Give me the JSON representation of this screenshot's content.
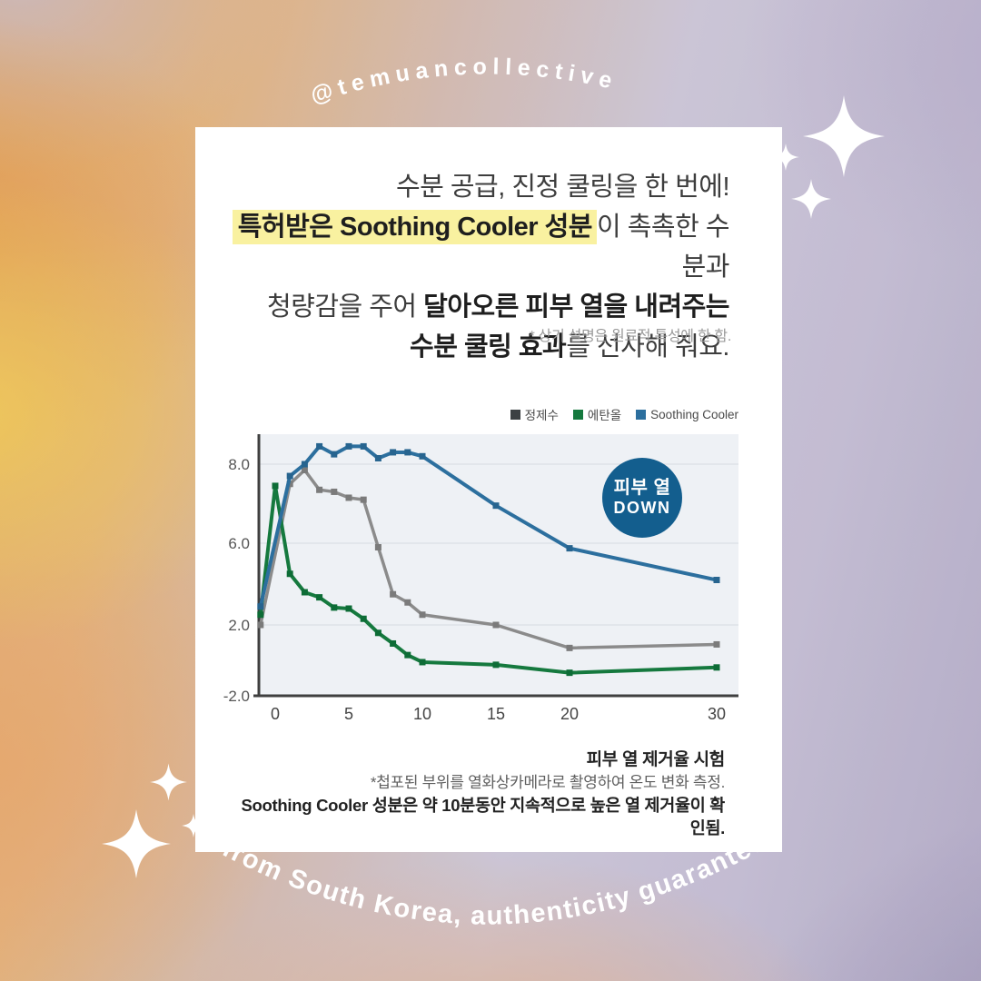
{
  "branding": {
    "handle_top": "@temuancollective",
    "tagline_bottom": "from South Korea, authenticity guaranteed"
  },
  "card": {
    "headline": {
      "line1": "수분 공급, 진정 쿨링을 한 번에!",
      "line2_highlight": "특허받은 Soothing Cooler 성분",
      "line2_rest": "이 촉촉한 수분과",
      "line3_prefix": "청량감을 주어 ",
      "line3_bold": "달아오른 피부 열을 내려주는",
      "line4_bold": "수분 쿨링 효과",
      "line4_rest": "를 선사해 줘요.",
      "highlight_color": "#f9f1a0"
    },
    "disclaimer": "* 상기 설명은 원료적 특성에 한 함.",
    "badge": {
      "line1": "피부 열",
      "line2": "DOWN",
      "color": "#135e8e"
    },
    "footer": {
      "title": "피부 열 제거율 시험",
      "note": "*첩포된 부위를 열화상카메라로 촬영하여 온도 변화 측정.",
      "emphasis": "Soothing Cooler 성분은 약 10분동안 지속적으로 높은 열 제거율이 확인됨."
    }
  },
  "chart_data": {
    "type": "line",
    "title": "",
    "xlabel": "",
    "ylabel": "",
    "x_ticks": [
      0,
      5,
      10,
      15,
      20,
      30
    ],
    "y_ticks": [
      8.0,
      6.0,
      2.0,
      -2.0
    ],
    "ylim": [
      -2.0,
      9.0
    ],
    "grid": true,
    "legend_position": "top-right",
    "plot_bg": "#eef1f5",
    "series": [
      {
        "name": "정제수",
        "swatch_color": "#3c4043",
        "line_color": "#8b8b8b",
        "marker_color": "#7b7b7b",
        "x": [
          -1,
          1,
          2,
          3,
          4,
          5,
          6,
          7,
          8,
          9,
          10,
          15,
          20,
          30
        ],
        "values": [
          2.0,
          7.5,
          7.85,
          7.35,
          7.3,
          7.15,
          7.1,
          5.8,
          3.5,
          3.1,
          2.5,
          2.0,
          0.7,
          0.9
        ]
      },
      {
        "name": "에탄올",
        "swatch_color": "#15793e",
        "line_color": "#15793e",
        "marker_color": "#0d6c36",
        "x": [
          -1,
          0,
          1,
          2,
          3,
          4,
          5,
          6,
          7,
          8,
          9,
          10,
          15,
          20,
          30
        ],
        "values": [
          2.5,
          7.45,
          4.5,
          3.6,
          3.35,
          2.85,
          2.8,
          2.3,
          1.55,
          0.95,
          0.3,
          -0.1,
          -0.25,
          -0.7,
          -0.4
        ]
      },
      {
        "name": "Soothing Cooler",
        "swatch_color": "#2c6f9e",
        "line_color": "#2c6f9e",
        "marker_color": "#27648f",
        "x": [
          -1,
          1,
          2,
          3,
          4,
          5,
          6,
          7,
          8,
          9,
          10,
          15,
          20,
          30
        ],
        "values": [
          2.9,
          7.7,
          8.0,
          8.45,
          8.25,
          8.45,
          8.45,
          8.15,
          8.3,
          8.3,
          8.2,
          6.95,
          5.75,
          4.2
        ]
      }
    ]
  }
}
